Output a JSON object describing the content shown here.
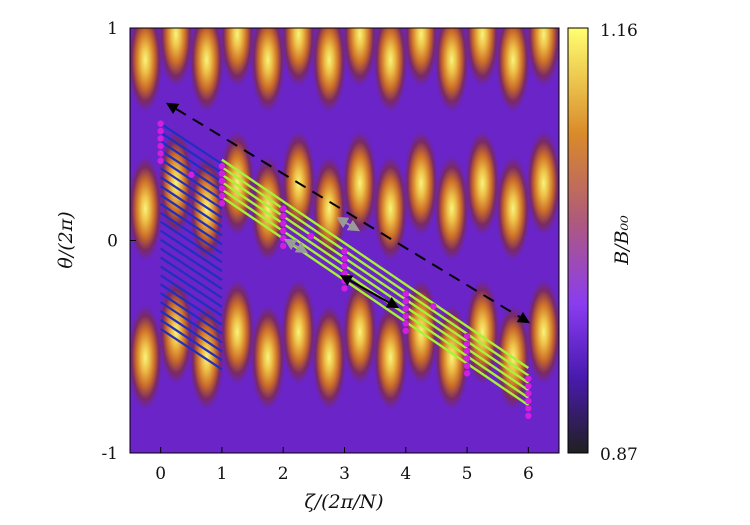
{
  "axes": {
    "xlabel": "ζ/(2π/N)",
    "ylabel": "θ/(2π)",
    "xticks": [
      "0",
      "1",
      "2",
      "3",
      "4",
      "5",
      "6"
    ],
    "yticks": [
      "1",
      "0",
      "-1"
    ],
    "xlim": [
      -0.5,
      6.5
    ],
    "ylim": [
      -1,
      1
    ]
  },
  "colorbar": {
    "label": "B/B₀₀",
    "max_label": "1.16",
    "min_label": "0.87",
    "range": [
      0.87,
      1.16
    ],
    "colormap": "black-purple-orange-yellow"
  },
  "colors": {
    "blue_lines": "#1f2fbf",
    "green_lines": "#a6f236",
    "magenta_points": "#d21ee0",
    "black_arrows": "#000000",
    "gray_arrows": "#9a9a9a"
  }
}
